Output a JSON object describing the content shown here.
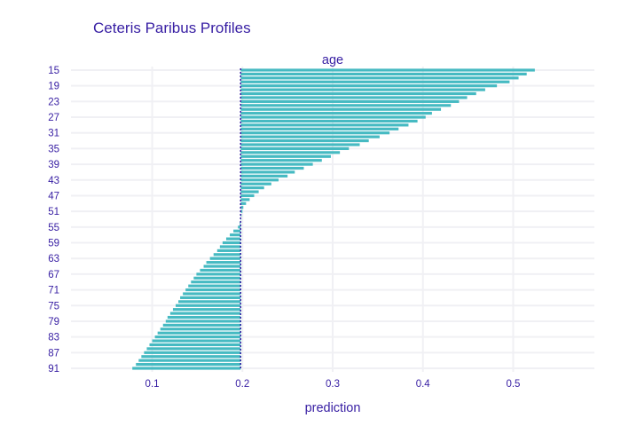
{
  "title": "Ceteris Paribus Profiles",
  "chart_data": {
    "type": "bar",
    "orientation": "horizontal",
    "title": "Ceteris Paribus Profiles",
    "subplot_title": "age",
    "xlabel": "prediction",
    "ylabel": "",
    "baseline": 0.198,
    "xlim": [
      0.01,
      0.59
    ],
    "xticks": [
      0.1,
      0.2,
      0.3,
      0.4,
      0.5
    ],
    "yticks": [
      15,
      19,
      23,
      27,
      31,
      35,
      39,
      43,
      47,
      51,
      55,
      59,
      63,
      67,
      71,
      75,
      79,
      83,
      87,
      91
    ],
    "grid": true,
    "bar_color": "#46bac2",
    "baseline_color": "#371ea3",
    "categories": [
      15,
      16,
      17,
      18,
      19,
      20,
      21,
      22,
      23,
      24,
      25,
      26,
      27,
      28,
      29,
      30,
      31,
      32,
      33,
      34,
      35,
      36,
      37,
      38,
      39,
      40,
      41,
      42,
      43,
      44,
      45,
      46,
      47,
      48,
      49,
      50,
      51,
      52,
      53,
      54,
      55,
      56,
      57,
      58,
      59,
      60,
      61,
      62,
      63,
      64,
      65,
      66,
      67,
      68,
      69,
      70,
      71,
      72,
      73,
      74,
      75,
      76,
      77,
      78,
      79,
      80,
      81,
      82,
      83,
      84,
      85,
      86,
      87,
      88,
      89,
      90,
      91
    ],
    "values": [
      0.524,
      0.515,
      0.506,
      0.496,
      0.482,
      0.469,
      0.459,
      0.449,
      0.44,
      0.431,
      0.42,
      0.41,
      0.403,
      0.394,
      0.384,
      0.373,
      0.363,
      0.352,
      0.34,
      0.33,
      0.318,
      0.308,
      0.298,
      0.288,
      0.278,
      0.268,
      0.258,
      0.25,
      0.24,
      0.232,
      0.224,
      0.218,
      0.213,
      0.208,
      0.204,
      0.201,
      0.2,
      0.199,
      0.198,
      0.197,
      0.195,
      0.19,
      0.186,
      0.182,
      0.178,
      0.175,
      0.172,
      0.168,
      0.164,
      0.16,
      0.157,
      0.153,
      0.149,
      0.146,
      0.143,
      0.14,
      0.137,
      0.134,
      0.131,
      0.129,
      0.126,
      0.123,
      0.12,
      0.117,
      0.115,
      0.112,
      0.109,
      0.106,
      0.103,
      0.1,
      0.097,
      0.094,
      0.091,
      0.088,
      0.085,
      0.082,
      0.078
    ]
  }
}
